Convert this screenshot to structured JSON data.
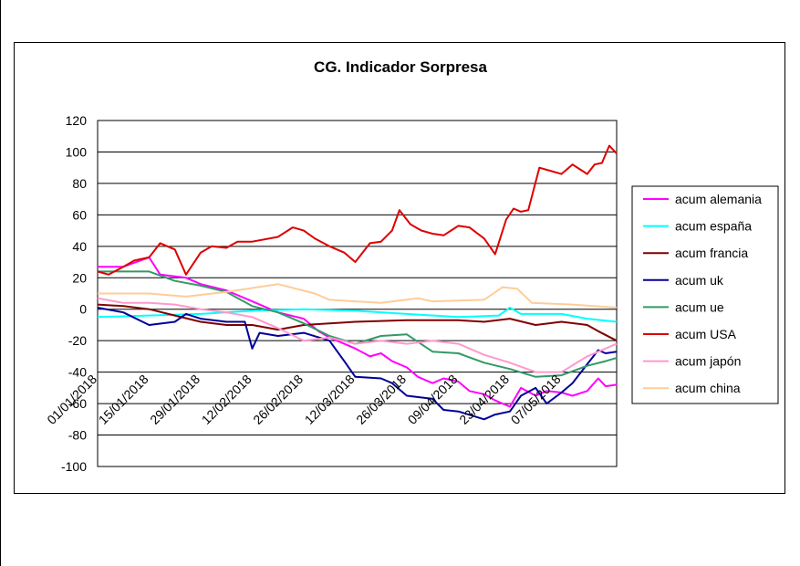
{
  "chart_data": {
    "type": "line",
    "title": "CG. Indicador Sorpresa",
    "xlabel": "",
    "ylabel": "",
    "ylim": [
      -100,
      120
    ],
    "y_ticks": [
      120,
      100,
      80,
      60,
      40,
      20,
      0,
      -20,
      -40,
      -60,
      -80,
      -100
    ],
    "x_tick_labels": [
      "01/01/2018",
      "15/01/2018",
      "29/01/2018",
      "12/02/2018",
      "26/02/2018",
      "12/03/2018",
      "26/03/2018",
      "09/04/2018",
      "23/04/2018",
      "07/05/2018"
    ],
    "x_start": "2018-01-01",
    "x_end": "2018-05-22",
    "grid": "horizontal",
    "legend_position": "right",
    "series": [
      {
        "name": "acum alemania",
        "color": "#ff00ff",
        "points": [
          [
            "2018-01-01",
            27
          ],
          [
            "2018-01-08",
            27
          ],
          [
            "2018-01-15",
            33
          ],
          [
            "2018-01-18",
            22
          ],
          [
            "2018-01-25",
            20
          ],
          [
            "2018-01-29",
            16
          ],
          [
            "2018-02-05",
            12
          ],
          [
            "2018-02-12",
            5
          ],
          [
            "2018-02-19",
            -2
          ],
          [
            "2018-02-26",
            -6
          ],
          [
            "2018-03-02",
            -14
          ],
          [
            "2018-03-05",
            -18
          ],
          [
            "2018-03-09",
            -22
          ],
          [
            "2018-03-12",
            -25
          ],
          [
            "2018-03-16",
            -30
          ],
          [
            "2018-03-19",
            -28
          ],
          [
            "2018-03-22",
            -33
          ],
          [
            "2018-03-26",
            -37
          ],
          [
            "2018-03-29",
            -43
          ],
          [
            "2018-04-02",
            -47
          ],
          [
            "2018-04-05",
            -44
          ],
          [
            "2018-04-09",
            -46
          ],
          [
            "2018-04-12",
            -52
          ],
          [
            "2018-04-16",
            -54
          ],
          [
            "2018-04-19",
            -58
          ],
          [
            "2018-04-23",
            -62
          ],
          [
            "2018-04-26",
            -50
          ],
          [
            "2018-04-30",
            -55
          ],
          [
            "2018-05-03",
            -52
          ],
          [
            "2018-05-07",
            -53
          ],
          [
            "2018-05-10",
            -55
          ],
          [
            "2018-05-14",
            -52
          ],
          [
            "2018-05-17",
            -44
          ],
          [
            "2018-05-19",
            -49
          ],
          [
            "2018-05-22",
            -48
          ]
        ]
      },
      {
        "name": "acum españa",
        "color": "#00ffff",
        "points": [
          [
            "2018-01-01",
            -5
          ],
          [
            "2018-01-15",
            -4
          ],
          [
            "2018-01-29",
            -3
          ],
          [
            "2018-02-12",
            -1
          ],
          [
            "2018-02-26",
            0
          ],
          [
            "2018-03-12",
            -1
          ],
          [
            "2018-03-26",
            -3
          ],
          [
            "2018-04-09",
            -5
          ],
          [
            "2018-04-20",
            -4
          ],
          [
            "2018-04-23",
            1
          ],
          [
            "2018-04-26",
            -3
          ],
          [
            "2018-05-07",
            -3
          ],
          [
            "2018-05-14",
            -6
          ],
          [
            "2018-05-22",
            -8
          ]
        ]
      },
      {
        "name": "acum francia",
        "color": "#800000",
        "points": [
          [
            "2018-01-01",
            3
          ],
          [
            "2018-01-08",
            2
          ],
          [
            "2018-01-15",
            0
          ],
          [
            "2018-01-22",
            -4
          ],
          [
            "2018-01-29",
            -8
          ],
          [
            "2018-02-05",
            -10
          ],
          [
            "2018-02-12",
            -10
          ],
          [
            "2018-02-19",
            -13
          ],
          [
            "2018-02-26",
            -10
          ],
          [
            "2018-03-05",
            -9
          ],
          [
            "2018-03-12",
            -8
          ],
          [
            "2018-03-26",
            -7
          ],
          [
            "2018-04-09",
            -7
          ],
          [
            "2018-04-16",
            -8
          ],
          [
            "2018-04-23",
            -6
          ],
          [
            "2018-04-30",
            -10
          ],
          [
            "2018-05-07",
            -8
          ],
          [
            "2018-05-14",
            -10
          ],
          [
            "2018-05-17",
            -14
          ],
          [
            "2018-05-22",
            -20
          ]
        ]
      },
      {
        "name": "acum uk",
        "color": "#000099",
        "points": [
          [
            "2018-01-01",
            1
          ],
          [
            "2018-01-08",
            -2
          ],
          [
            "2018-01-15",
            -10
          ],
          [
            "2018-01-22",
            -8
          ],
          [
            "2018-01-25",
            -3
          ],
          [
            "2018-01-29",
            -6
          ],
          [
            "2018-02-05",
            -8
          ],
          [
            "2018-02-10",
            -8
          ],
          [
            "2018-02-12",
            -25
          ],
          [
            "2018-02-14",
            -15
          ],
          [
            "2018-02-19",
            -17
          ],
          [
            "2018-02-26",
            -15
          ],
          [
            "2018-03-05",
            -20
          ],
          [
            "2018-03-09",
            -33
          ],
          [
            "2018-03-12",
            -43
          ],
          [
            "2018-03-19",
            -44
          ],
          [
            "2018-03-22",
            -47
          ],
          [
            "2018-03-26",
            -55
          ],
          [
            "2018-04-02",
            -57
          ],
          [
            "2018-04-05",
            -64
          ],
          [
            "2018-04-09",
            -65
          ],
          [
            "2018-04-16",
            -70
          ],
          [
            "2018-04-19",
            -67
          ],
          [
            "2018-04-23",
            -65
          ],
          [
            "2018-04-26",
            -55
          ],
          [
            "2018-04-30",
            -50
          ],
          [
            "2018-05-03",
            -60
          ],
          [
            "2018-05-07",
            -53
          ],
          [
            "2018-05-10",
            -47
          ],
          [
            "2018-05-14",
            -35
          ],
          [
            "2018-05-17",
            -26
          ],
          [
            "2018-05-19",
            -28
          ],
          [
            "2018-05-22",
            -27
          ]
        ]
      },
      {
        "name": "acum ue",
        "color": "#339966",
        "points": [
          [
            "2018-01-01",
            24
          ],
          [
            "2018-01-08",
            24
          ],
          [
            "2018-01-15",
            24
          ],
          [
            "2018-01-22",
            18
          ],
          [
            "2018-01-29",
            15
          ],
          [
            "2018-02-05",
            11
          ],
          [
            "2018-02-12",
            2
          ],
          [
            "2018-02-19",
            -2
          ],
          [
            "2018-02-26",
            -9
          ],
          [
            "2018-03-05",
            -17
          ],
          [
            "2018-03-12",
            -22
          ],
          [
            "2018-03-19",
            -17
          ],
          [
            "2018-03-26",
            -16
          ],
          [
            "2018-04-02",
            -27
          ],
          [
            "2018-04-09",
            -28
          ],
          [
            "2018-04-16",
            -34
          ],
          [
            "2018-04-23",
            -38
          ],
          [
            "2018-04-30",
            -43
          ],
          [
            "2018-05-07",
            -42
          ],
          [
            "2018-05-14",
            -36
          ],
          [
            "2018-05-19",
            -33
          ],
          [
            "2018-05-22",
            -31
          ]
        ]
      },
      {
        "name": "acum USA",
        "color": "#dd0000",
        "points": [
          [
            "2018-01-01",
            24
          ],
          [
            "2018-01-04",
            22
          ],
          [
            "2018-01-08",
            27
          ],
          [
            "2018-01-11",
            31
          ],
          [
            "2018-01-15",
            33
          ],
          [
            "2018-01-18",
            42
          ],
          [
            "2018-01-22",
            38
          ],
          [
            "2018-01-25",
            22
          ],
          [
            "2018-01-29",
            36
          ],
          [
            "2018-02-01",
            40
          ],
          [
            "2018-02-05",
            39
          ],
          [
            "2018-02-08",
            43
          ],
          [
            "2018-02-12",
            43
          ],
          [
            "2018-02-19",
            46
          ],
          [
            "2018-02-23",
            52
          ],
          [
            "2018-02-26",
            50
          ],
          [
            "2018-03-01",
            45
          ],
          [
            "2018-03-05",
            40
          ],
          [
            "2018-03-09",
            36
          ],
          [
            "2018-03-12",
            30
          ],
          [
            "2018-03-16",
            42
          ],
          [
            "2018-03-19",
            43
          ],
          [
            "2018-03-22",
            50
          ],
          [
            "2018-03-24",
            63
          ],
          [
            "2018-03-27",
            54
          ],
          [
            "2018-03-30",
            50
          ],
          [
            "2018-04-02",
            48
          ],
          [
            "2018-04-05",
            47
          ],
          [
            "2018-04-09",
            53
          ],
          [
            "2018-04-12",
            52
          ],
          [
            "2018-04-16",
            45
          ],
          [
            "2018-04-19",
            35
          ],
          [
            "2018-04-22",
            57
          ],
          [
            "2018-04-24",
            64
          ],
          [
            "2018-04-26",
            62
          ],
          [
            "2018-04-28",
            63
          ],
          [
            "2018-05-01",
            90
          ],
          [
            "2018-05-04",
            88
          ],
          [
            "2018-05-07",
            86
          ],
          [
            "2018-05-10",
            92
          ],
          [
            "2018-05-14",
            86
          ],
          [
            "2018-05-16",
            92
          ],
          [
            "2018-05-18",
            93
          ],
          [
            "2018-05-20",
            104
          ],
          [
            "2018-05-22",
            99
          ]
        ]
      },
      {
        "name": "acum japón",
        "color": "#ff99cc",
        "points": [
          [
            "2018-01-01",
            7
          ],
          [
            "2018-01-08",
            4
          ],
          [
            "2018-01-15",
            4
          ],
          [
            "2018-01-22",
            3
          ],
          [
            "2018-01-29",
            0
          ],
          [
            "2018-02-05",
            -2
          ],
          [
            "2018-02-12",
            -5
          ],
          [
            "2018-02-19",
            -12
          ],
          [
            "2018-02-26",
            -20
          ],
          [
            "2018-03-05",
            -18
          ],
          [
            "2018-03-12",
            -22
          ],
          [
            "2018-03-19",
            -20
          ],
          [
            "2018-03-26",
            -22
          ],
          [
            "2018-04-02",
            -20
          ],
          [
            "2018-04-09",
            -22
          ],
          [
            "2018-04-16",
            -29
          ],
          [
            "2018-04-23",
            -34
          ],
          [
            "2018-04-30",
            -40
          ],
          [
            "2018-05-07",
            -40
          ],
          [
            "2018-05-14",
            -30
          ],
          [
            "2018-05-22",
            -22
          ]
        ]
      },
      {
        "name": "acum china",
        "color": "#ffcc99",
        "points": [
          [
            "2018-01-01",
            10
          ],
          [
            "2018-01-15",
            10
          ],
          [
            "2018-01-25",
            8
          ],
          [
            "2018-02-05",
            11
          ],
          [
            "2018-02-19",
            16
          ],
          [
            "2018-03-01",
            10
          ],
          [
            "2018-03-05",
            6
          ],
          [
            "2018-03-19",
            4
          ],
          [
            "2018-03-29",
            7
          ],
          [
            "2018-04-02",
            5
          ],
          [
            "2018-04-16",
            6
          ],
          [
            "2018-04-21",
            14
          ],
          [
            "2018-04-25",
            13
          ],
          [
            "2018-04-29",
            4
          ],
          [
            "2018-05-10",
            3
          ],
          [
            "2018-05-22",
            1
          ]
        ]
      }
    ]
  }
}
